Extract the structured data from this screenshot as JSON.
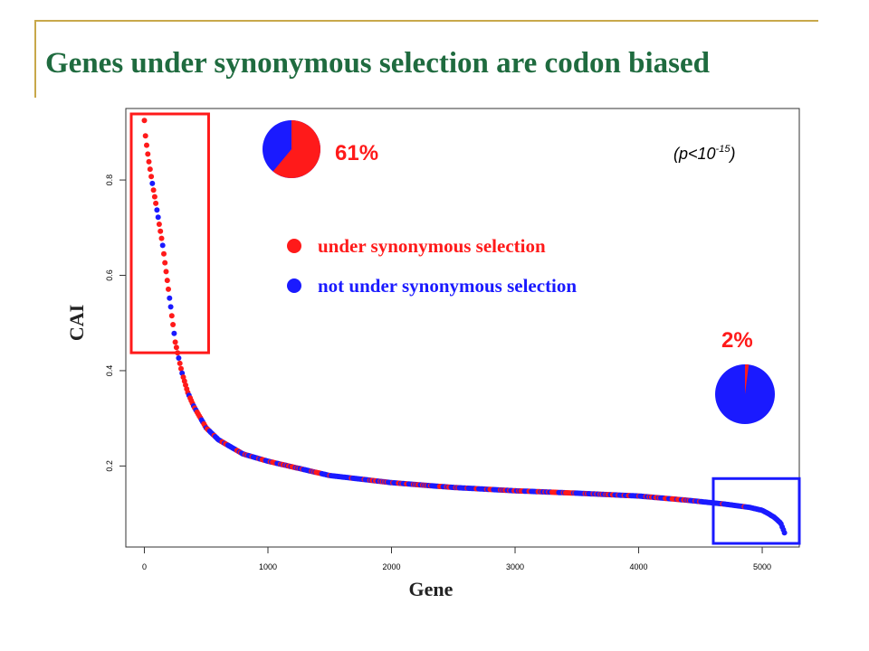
{
  "slide": {
    "title": "Genes under synonymous selection are codon biased"
  },
  "colors": {
    "selected": "#ff1a1a",
    "not_selected": "#1a1aff",
    "title": "#1f6b3f",
    "decoration": "#c8a84a"
  },
  "chart_data": {
    "type": "scatter",
    "title": "",
    "xlabel": "Gene",
    "ylabel": "CAI",
    "xlim": [
      -150,
      5300
    ],
    "ylim": [
      0.03,
      0.95
    ],
    "x_ticks": [
      0,
      1000,
      2000,
      3000,
      4000,
      5000
    ],
    "y_ticks": [
      0.2,
      0.4,
      0.6,
      0.8
    ],
    "grid": false,
    "series": [
      {
        "name": "under synonymous selection",
        "color": "#ff1a1a"
      },
      {
        "name": "not under synonymous selection",
        "color": "#1a1aff"
      }
    ],
    "curve": {
      "x": [
        0,
        10,
        30,
        60,
        100,
        150,
        200,
        250,
        300,
        350,
        400,
        500,
        600,
        800,
        1000,
        1500,
        2000,
        2500,
        3000,
        3500,
        4000,
        4400,
        4700,
        4900,
        5000,
        5050,
        5100,
        5150,
        5180
      ],
      "y": [
        0.925,
        0.89,
        0.85,
        0.8,
        0.74,
        0.66,
        0.56,
        0.46,
        0.4,
        0.355,
        0.325,
        0.28,
        0.255,
        0.225,
        0.21,
        0.18,
        0.165,
        0.155,
        0.148,
        0.143,
        0.137,
        0.128,
        0.12,
        0.113,
        0.107,
        0.1,
        0.092,
        0.08,
        0.06
      ]
    },
    "annotations": {
      "top_percent": "61%",
      "bottom_percent": "2%",
      "p_value_prefix": "(p<10",
      "p_value_exponent": "-15",
      "p_value_suffix": ")"
    },
    "pie_top": {
      "selected_fraction": 0.61
    },
    "pie_bottom": {
      "selected_fraction": 0.02
    },
    "highlight_boxes": [
      {
        "x_range": [
          -150,
          520
        ],
        "y_range": [
          0.43,
          0.95
        ],
        "color": "#ff1a1a"
      },
      {
        "x_range": [
          4560,
          5300
        ],
        "y_range": [
          0.03,
          0.185
        ],
        "color": "#1a1aff"
      }
    ],
    "legend": {
      "placement": "center",
      "items": [
        "under synonymous selection",
        "not under synonymous selection"
      ]
    }
  }
}
